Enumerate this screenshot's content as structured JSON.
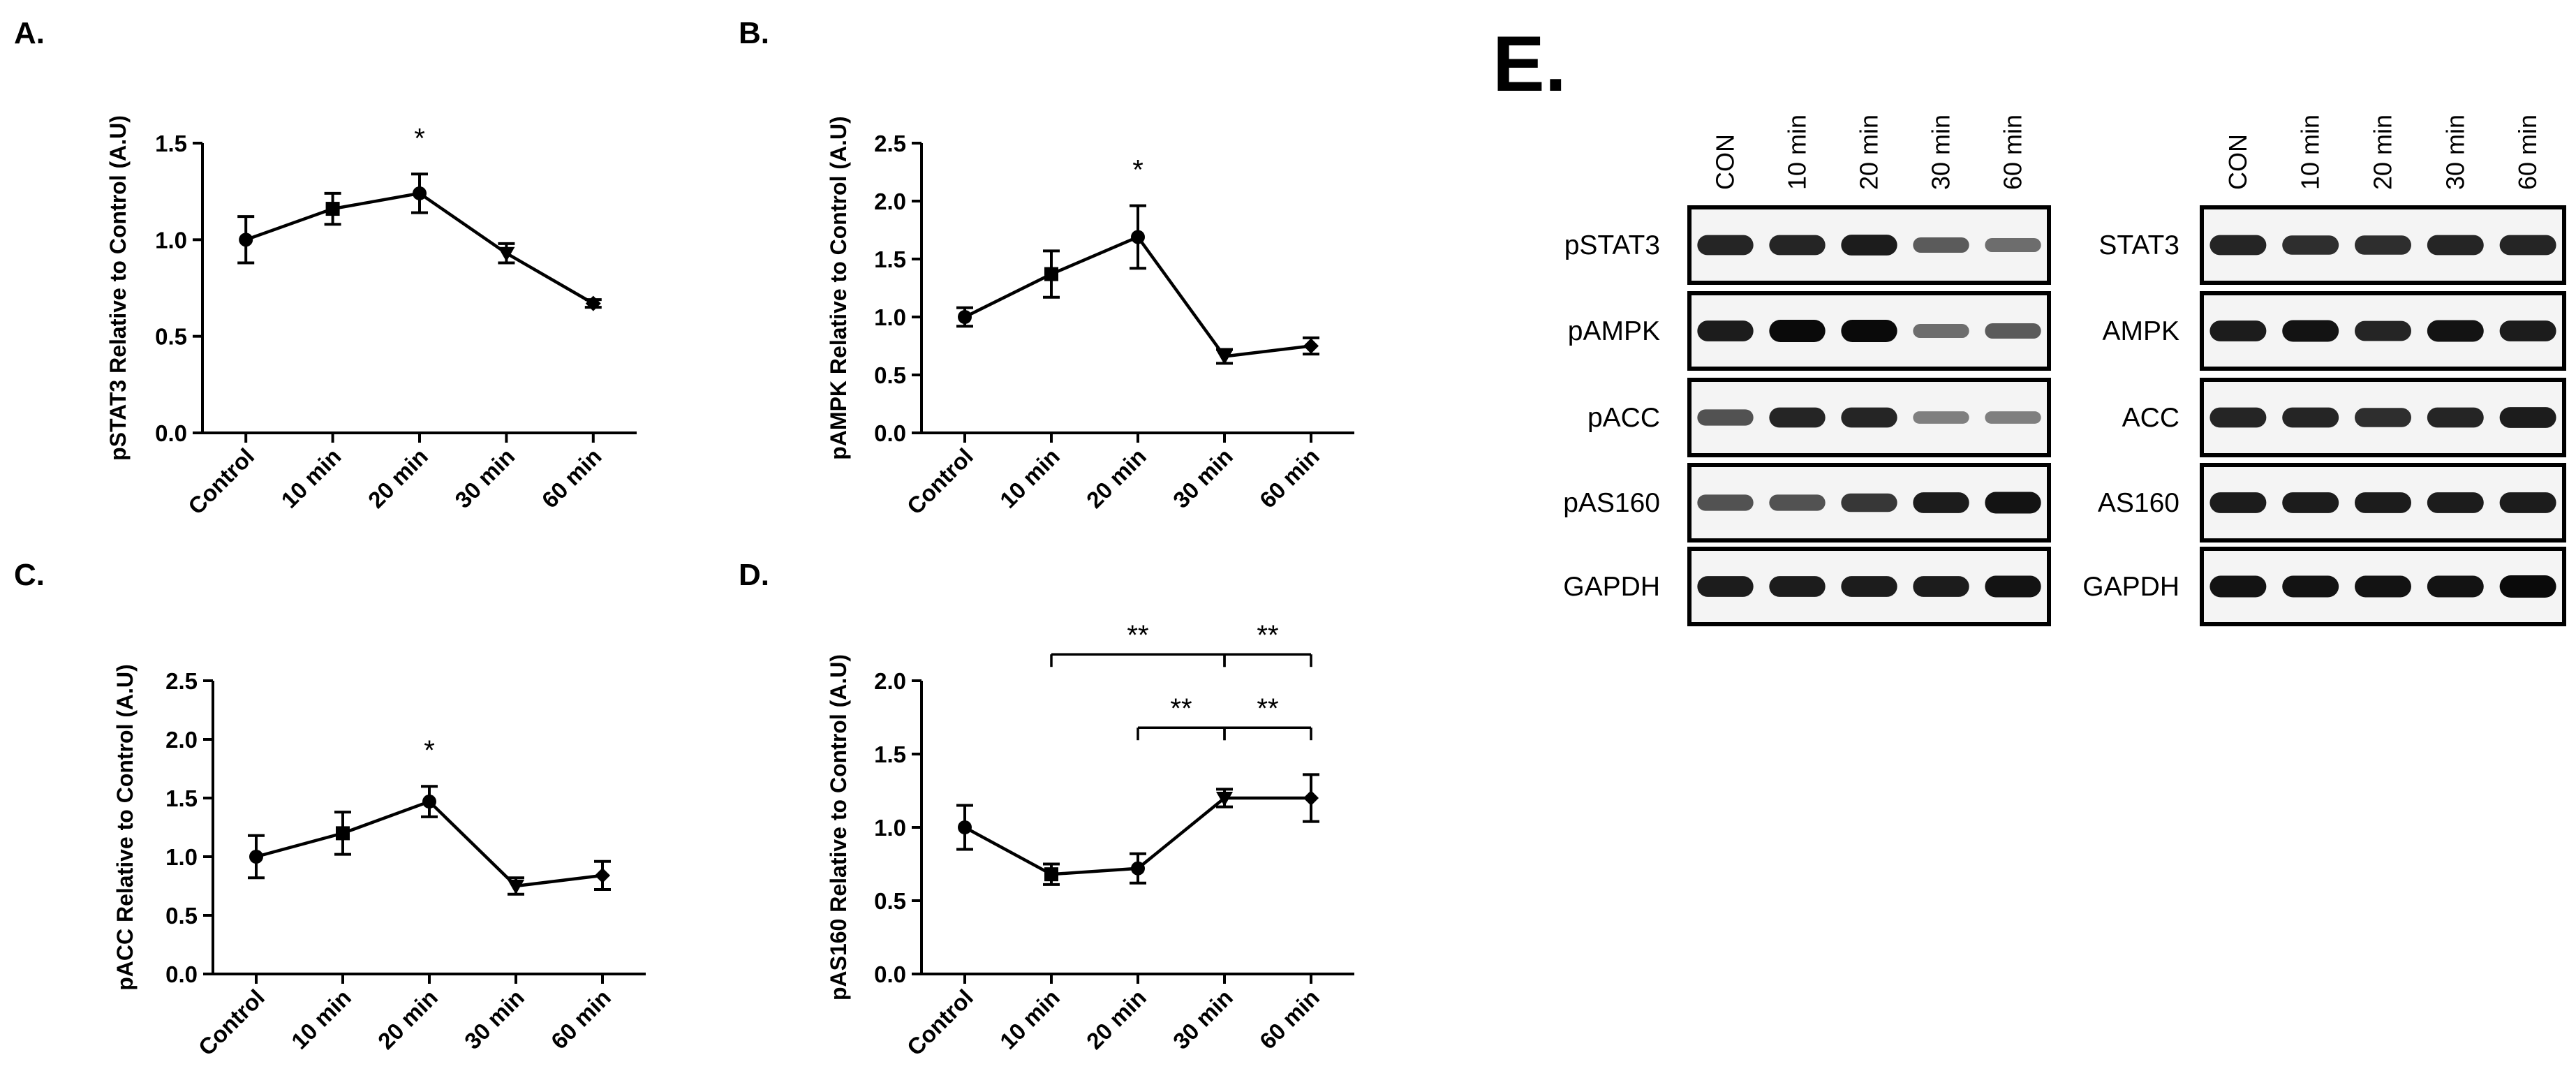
{
  "chart_data": [
    {
      "type": "line",
      "panel": "A.",
      "categories": [
        "Control",
        "10 min",
        "20 min",
        "30 min",
        "60 min"
      ],
      "values": [
        1.0,
        1.16,
        1.24,
        0.93,
        0.67
      ],
      "errors": [
        0.12,
        0.08,
        0.1,
        0.05,
        0.02
      ],
      "markers": [
        "circle",
        "square",
        "circle",
        "triangle-down",
        "diamond"
      ],
      "xlabel": "",
      "ylabel": "pSTAT3 Relative to Control (A.U)",
      "ylim": [
        0,
        1.5
      ],
      "yticks": [
        "0.0",
        "0.5",
        "1.0",
        "1.5"
      ],
      "significance": [
        {
          "category": "20 min",
          "label": "*"
        }
      ],
      "brackets": []
    },
    {
      "type": "line",
      "panel": "B.",
      "categories": [
        "Control",
        "10 min",
        "20 min",
        "30 min",
        "60 min"
      ],
      "values": [
        1.0,
        1.37,
        1.69,
        0.66,
        0.75
      ],
      "errors": [
        0.08,
        0.2,
        0.27,
        0.06,
        0.07
      ],
      "markers": [
        "circle",
        "square",
        "circle",
        "triangle-down",
        "diamond"
      ],
      "xlabel": "",
      "ylabel": "pAMPK Relative to Control (A.U)",
      "ylim": [
        0,
        2.5
      ],
      "yticks": [
        "0.0",
        "0.5",
        "1.0",
        "1.5",
        "2.0",
        "2.5"
      ],
      "significance": [
        {
          "category": "20 min",
          "label": "*"
        }
      ],
      "brackets": []
    },
    {
      "type": "line",
      "panel": "C.",
      "categories": [
        "Control",
        "10 min",
        "20 min",
        "30 min",
        "60 min"
      ],
      "values": [
        1.0,
        1.2,
        1.47,
        0.75,
        0.84
      ],
      "errors": [
        0.18,
        0.18,
        0.13,
        0.07,
        0.12
      ],
      "markers": [
        "circle",
        "square",
        "circle",
        "triangle-down",
        "diamond"
      ],
      "xlabel": "",
      "ylabel": "pACC Relative to Control (A.U)",
      "ylim": [
        0,
        2.5
      ],
      "yticks": [
        "0.0",
        "0.5",
        "1.0",
        "1.5",
        "2.0",
        "2.5"
      ],
      "significance": [
        {
          "category": "20 min",
          "label": "*"
        }
      ],
      "brackets": []
    },
    {
      "type": "line",
      "panel": "D.",
      "categories": [
        "Control",
        "10 min",
        "20 min",
        "30 min",
        "60 min"
      ],
      "values": [
        1.0,
        0.68,
        0.72,
        1.2,
        1.2
      ],
      "errors": [
        0.15,
        0.07,
        0.1,
        0.06,
        0.16
      ],
      "markers": [
        "circle",
        "square",
        "circle",
        "triangle-down",
        "diamond"
      ],
      "xlabel": "",
      "ylabel": "pAS160 Relative to Control (A.U)",
      "ylim": [
        0,
        2.0
      ],
      "yticks": [
        "0.0",
        "0.5",
        "1.0",
        "1.5",
        "2.0"
      ],
      "significance": [],
      "brackets": [
        {
          "from": "10 min",
          "to": "30 min",
          "y": 2.18,
          "label": "**"
        },
        {
          "from": "30 min",
          "to": "60 min",
          "y": 2.18,
          "label": "**"
        },
        {
          "from": "20 min",
          "to": "30 min",
          "y": 1.68,
          "label": "**"
        },
        {
          "from": "30 min",
          "to": "60 min",
          "y": 1.68,
          "label": "**"
        }
      ]
    }
  ],
  "blot": {
    "letter": "E.",
    "lanes": [
      "CON",
      "10 min",
      "20 min",
      "30 min",
      "60 min"
    ],
    "left_rows": [
      {
        "label": "pSTAT3",
        "intensity": [
          0.85,
          0.85,
          0.9,
          0.55,
          0.45
        ]
      },
      {
        "label": "pAMPK",
        "intensity": [
          0.9,
          1.0,
          1.0,
          0.45,
          0.55
        ]
      },
      {
        "label": "pACC",
        "intensity": [
          0.6,
          0.85,
          0.85,
          0.35,
          0.35
        ]
      },
      {
        "label": "pAS160",
        "intensity": [
          0.6,
          0.6,
          0.75,
          0.9,
          0.95
        ]
      },
      {
        "label": "GAPDH",
        "intensity": [
          0.9,
          0.9,
          0.9,
          0.9,
          0.95
        ]
      }
    ],
    "right_rows": [
      {
        "label": "STAT3",
        "intensity": [
          0.85,
          0.8,
          0.8,
          0.85,
          0.85
        ]
      },
      {
        "label": "AMPK",
        "intensity": [
          0.9,
          0.95,
          0.85,
          0.95,
          0.9
        ]
      },
      {
        "label": "ACC",
        "intensity": [
          0.85,
          0.85,
          0.8,
          0.85,
          0.9
        ]
      },
      {
        "label": "AS160",
        "intensity": [
          0.9,
          0.9,
          0.9,
          0.9,
          0.9
        ]
      },
      {
        "label": "GAPDH",
        "intensity": [
          0.95,
          0.95,
          0.95,
          0.95,
          1.0
        ]
      }
    ]
  }
}
